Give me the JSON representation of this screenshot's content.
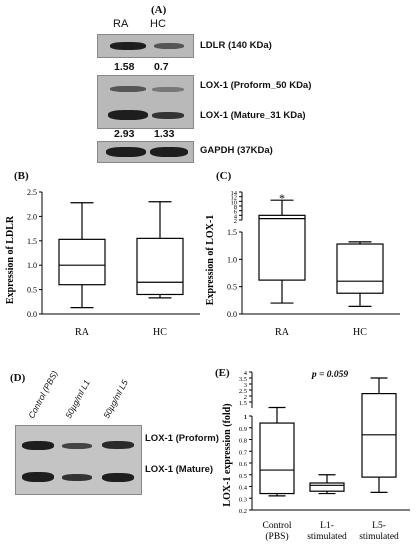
{
  "panels": {
    "a": {
      "label": "(A)",
      "lanes": [
        "RA",
        "HC"
      ],
      "bands": [
        {
          "name": "ldlr",
          "label": "LDLR (140 KDa)"
        },
        {
          "name": "lox1-proform",
          "label": "LOX-1 (Proform_50 KDa)"
        },
        {
          "name": "lox1-mature",
          "label": "LOX-1 (Mature_31 KDa)"
        },
        {
          "name": "gapdh",
          "label": "GAPDH (37KDa)"
        }
      ],
      "ratios": {
        "ldlr": [
          "1.58",
          "0.7"
        ],
        "lox1": [
          "2.93",
          "1.33"
        ]
      }
    },
    "b": {
      "label": "(B)"
    },
    "c": {
      "label": "(C)"
    },
    "d": {
      "label": "(D)",
      "lanes": [
        "Control (PBS)",
        "50µg/ml L1",
        "50µg/ml L5"
      ],
      "bands": [
        "LOX-1 (Proform)",
        "LOX-1 (Mature)"
      ]
    },
    "e": {
      "label": "(E)"
    }
  },
  "chart_data": [
    {
      "id": "b",
      "type": "box",
      "ylabel": "Expression of LDLR",
      "categories": [
        "RA",
        "HC"
      ],
      "ylim": [
        0,
        2.5
      ],
      "yticks": [
        "0.0",
        "0.5",
        "1.0",
        "1.5",
        "2.0",
        "2.5"
      ],
      "boxes": [
        {
          "min": 0.13,
          "q1": 0.6,
          "median": 1.0,
          "q3": 1.53,
          "max": 2.28
        },
        {
          "min": 0.33,
          "q1": 0.4,
          "median": 0.65,
          "q3": 1.55,
          "max": 2.3
        }
      ]
    },
    {
      "id": "c",
      "type": "box",
      "ylabel": "Expression of LOX-1",
      "categories": [
        "RA",
        "HC"
      ],
      "axis_break": true,
      "lower_ylim": [
        0,
        1.5
      ],
      "upper_yticks": [
        "2",
        "4",
        "6",
        "8",
        "10",
        "12",
        "14"
      ],
      "lower_yticks": [
        "0.0",
        "0.5",
        "1.0",
        "1.5"
      ],
      "annotation": "*",
      "boxes": [
        {
          "min": 0.2,
          "q1": 0.62,
          "median": 2.6,
          "q3": 4.0,
          "max": 10.5
        },
        {
          "min": 0.14,
          "q1": 0.38,
          "median": 0.6,
          "q3": 1.28,
          "max": 1.32
        }
      ]
    },
    {
      "id": "e",
      "type": "box",
      "ylabel": "LOX-1 expression (fold)",
      "categories": [
        "Control (PBS)",
        "L1-stimulated",
        "L5-stimulated"
      ],
      "axis_break": true,
      "annotation": "p = 0.059",
      "upper_yticks": [
        "1",
        "1.5",
        "2",
        "2.5",
        "3",
        "3.5",
        "4"
      ],
      "lower_yticks": [
        "0.2",
        "0.3",
        "0.4",
        "0.5",
        "0.6",
        "0.7",
        "0.8",
        "0.9",
        "1"
      ],
      "boxes": [
        {
          "min": 0.32,
          "q1": 0.34,
          "median": 0.54,
          "q3": 0.94,
          "max": 1.04
        },
        {
          "min": 0.34,
          "q1": 0.36,
          "median": 0.41,
          "q3": 0.43,
          "max": 0.5
        },
        {
          "min": 0.35,
          "q1": 0.48,
          "median": 0.84,
          "q3": 2.2,
          "max": 3.5
        }
      ]
    }
  ]
}
